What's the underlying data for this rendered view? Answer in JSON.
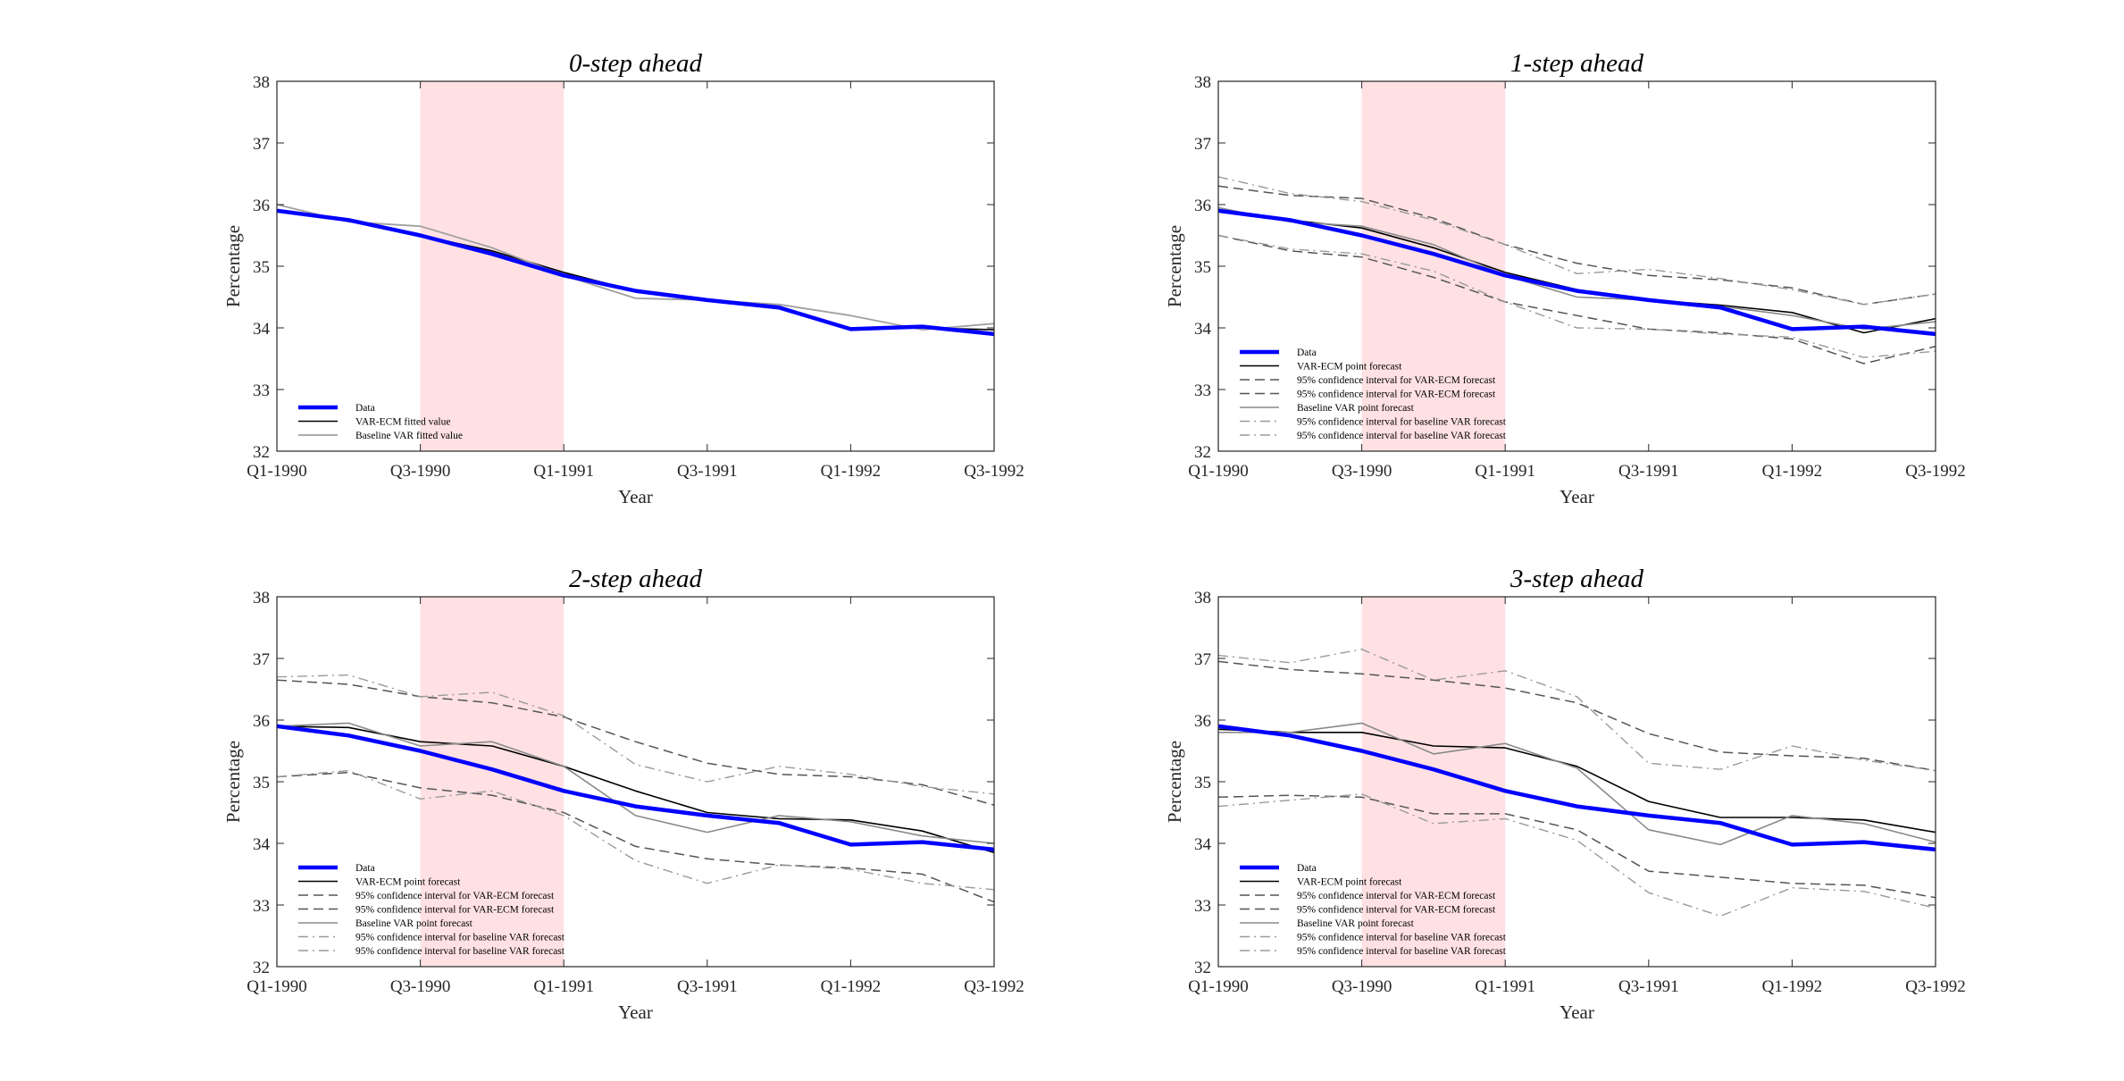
{
  "chart_data": [
    {
      "type": "line",
      "title": "0-step ahead",
      "xlabel": "Year",
      "ylabel": "Percentage",
      "ylim": [
        32,
        38
      ],
      "yticks": [
        32,
        33,
        34,
        35,
        36,
        37,
        38
      ],
      "xtick_labels": [
        "Q1-1990",
        "Q3-1990",
        "Q1-1991",
        "Q3-1991",
        "Q1-1992",
        "Q3-1992"
      ],
      "x": [
        0,
        1,
        2,
        3,
        4,
        5,
        6,
        7,
        8,
        9,
        10
      ],
      "shaded_region": [
        2,
        4
      ],
      "shade_color": "#ffe1e3",
      "legend_position": "bottom-left",
      "series": [
        {
          "name": "Data",
          "color": "#0000ff",
          "dash": "solid",
          "width": 4.5,
          "values": [
            35.9,
            35.75,
            35.5,
            35.2,
            34.85,
            34.6,
            34.45,
            34.33,
            33.98,
            34.02,
            33.9
          ]
        },
        {
          "name": "VAR-ECM fitted value",
          "color": "#000000",
          "dash": "solid",
          "width": 1.6,
          "values": [
            35.9,
            35.75,
            35.5,
            35.25,
            34.9,
            34.6,
            34.45,
            34.35,
            33.98,
            34.0,
            33.97
          ]
        },
        {
          "name": "Baseline VAR fitted value",
          "color": "#a0a0a0",
          "dash": "solid",
          "width": 1.8,
          "values": [
            36.0,
            35.72,
            35.65,
            35.3,
            34.85,
            34.48,
            34.45,
            34.38,
            34.2,
            33.97,
            34.07
          ]
        }
      ]
    },
    {
      "type": "line",
      "title": "1-step ahead",
      "xlabel": "Year",
      "ylabel": "Percentage",
      "ylim": [
        32,
        38
      ],
      "yticks": [
        32,
        33,
        34,
        35,
        36,
        37,
        38
      ],
      "xtick_labels": [
        "Q1-1990",
        "Q3-1990",
        "Q1-1991",
        "Q3-1991",
        "Q1-1992",
        "Q3-1992"
      ],
      "x": [
        0,
        1,
        2,
        3,
        4,
        5,
        6,
        7,
        8,
        9,
        10
      ],
      "shaded_region": [
        2,
        4
      ],
      "shade_color": "#ffe1e3",
      "legend_position": "bottom-left",
      "series": [
        {
          "name": "Data",
          "color": "#0000ff",
          "dash": "solid",
          "width": 4.5,
          "values": [
            35.9,
            35.75,
            35.5,
            35.2,
            34.85,
            34.6,
            34.45,
            34.33,
            33.98,
            34.02,
            33.9
          ]
        },
        {
          "name": "VAR-ECM point forecast",
          "color": "#000000",
          "dash": "solid",
          "width": 1.6,
          "values": [
            35.9,
            35.75,
            35.62,
            35.3,
            34.9,
            34.62,
            34.45,
            34.37,
            34.25,
            33.92,
            34.15
          ]
        },
        {
          "name": "95% confidence interval for VAR-ECM forecast",
          "color": "#555555",
          "dash": "dashed",
          "width": 1.5,
          "values": [
            36.3,
            36.15,
            36.1,
            35.78,
            35.35,
            35.05,
            34.85,
            34.78,
            34.65,
            34.38,
            34.55
          ]
        },
        {
          "name": "95% confidence interval for VAR-ECM forecast",
          "color": "#555555",
          "dash": "dashed",
          "width": 1.5,
          "values": [
            35.5,
            35.25,
            35.15,
            34.82,
            34.42,
            34.2,
            33.98,
            33.92,
            33.82,
            33.42,
            33.7
          ]
        },
        {
          "name": "Baseline VAR point forecast",
          "color": "#8a8a8a",
          "dash": "solid",
          "width": 1.6,
          "values": [
            35.95,
            35.72,
            35.65,
            35.35,
            34.85,
            34.5,
            34.45,
            34.35,
            34.2,
            33.98,
            34.1
          ]
        },
        {
          "name": "95% confidence interval for baseline VAR forecast",
          "color": "#9a9a9a",
          "dash": "dashdot",
          "width": 1.4,
          "values": [
            36.45,
            36.18,
            36.05,
            35.75,
            35.35,
            34.88,
            34.95,
            34.8,
            34.62,
            34.38,
            34.55
          ]
        },
        {
          "name": "95% confidence interval for baseline VAR forecast",
          "color": "#9a9a9a",
          "dash": "dashdot",
          "width": 1.4,
          "values": [
            35.5,
            35.28,
            35.2,
            34.92,
            34.42,
            34.0,
            33.98,
            33.9,
            33.85,
            33.52,
            33.62
          ]
        }
      ]
    },
    {
      "type": "line",
      "title": "2-step ahead",
      "xlabel": "Year",
      "ylabel": "Percentage",
      "ylim": [
        32,
        38
      ],
      "yticks": [
        32,
        33,
        34,
        35,
        36,
        37,
        38
      ],
      "xtick_labels": [
        "Q1-1990",
        "Q3-1990",
        "Q1-1991",
        "Q3-1991",
        "Q1-1992",
        "Q3-1992"
      ],
      "x": [
        0,
        1,
        2,
        3,
        4,
        5,
        6,
        7,
        8,
        9,
        10
      ],
      "shaded_region": [
        2,
        4
      ],
      "shade_color": "#ffe1e3",
      "legend_position": "bottom-left",
      "series": [
        {
          "name": "Data",
          "color": "#0000ff",
          "dash": "solid",
          "width": 4.5,
          "values": [
            35.9,
            35.75,
            35.5,
            35.2,
            34.85,
            34.6,
            34.45,
            34.33,
            33.98,
            34.02,
            33.9
          ]
        },
        {
          "name": "VAR-ECM point forecast",
          "color": "#000000",
          "dash": "solid",
          "width": 1.6,
          "values": [
            35.9,
            35.88,
            35.65,
            35.58,
            35.25,
            34.85,
            34.5,
            34.4,
            34.38,
            34.2,
            33.85
          ]
        },
        {
          "name": "95% confidence interval for VAR-ECM forecast",
          "color": "#555555",
          "dash": "dashed",
          "width": 1.5,
          "values": [
            36.65,
            36.58,
            36.38,
            36.28,
            36.05,
            35.65,
            35.3,
            35.12,
            35.08,
            34.95,
            34.62
          ]
        },
        {
          "name": "95% confidence interval for VAR-ECM forecast",
          "color": "#555555",
          "dash": "dashed",
          "width": 1.5,
          "values": [
            35.08,
            35.15,
            34.9,
            34.78,
            34.5,
            33.95,
            33.75,
            33.65,
            33.6,
            33.5,
            33.05
          ]
        },
        {
          "name": "Baseline VAR point forecast",
          "color": "#8a8a8a",
          "dash": "solid",
          "width": 1.6,
          "values": [
            35.9,
            35.95,
            35.58,
            35.65,
            35.25,
            34.45,
            34.18,
            34.45,
            34.35,
            34.12,
            34.0
          ]
        },
        {
          "name": "95% confidence interval for baseline VAR forecast",
          "color": "#9a9a9a",
          "dash": "dashdot",
          "width": 1.4,
          "values": [
            36.7,
            36.73,
            36.38,
            36.45,
            36.07,
            35.28,
            35.0,
            35.25,
            35.12,
            34.92,
            34.8
          ]
        },
        {
          "name": "95% confidence interval for baseline VAR forecast",
          "color": "#9a9a9a",
          "dash": "dashdot",
          "width": 1.4,
          "values": [
            35.08,
            35.18,
            34.72,
            34.85,
            34.45,
            33.72,
            33.35,
            33.65,
            33.58,
            33.35,
            33.25
          ]
        }
      ]
    },
    {
      "type": "line",
      "title": "3-step ahead",
      "xlabel": "Year",
      "ylabel": "Percentage",
      "ylim": [
        32,
        38
      ],
      "yticks": [
        32,
        33,
        34,
        35,
        36,
        37,
        38
      ],
      "xtick_labels": [
        "Q1-1990",
        "Q3-1990",
        "Q1-1991",
        "Q3-1991",
        "Q1-1992",
        "Q3-1992"
      ],
      "x": [
        0,
        1,
        2,
        3,
        4,
        5,
        6,
        7,
        8,
        9,
        10
      ],
      "shaded_region": [
        2,
        4
      ],
      "shade_color": "#ffe1e3",
      "legend_position": "bottom-left",
      "series": [
        {
          "name": "Data",
          "color": "#0000ff",
          "dash": "solid",
          "width": 4.5,
          "values": [
            35.9,
            35.75,
            35.5,
            35.2,
            34.85,
            34.6,
            34.45,
            34.33,
            33.98,
            34.02,
            33.9
          ]
        },
        {
          "name": "VAR-ECM point forecast",
          "color": "#000000",
          "dash": "solid",
          "width": 1.6,
          "values": [
            35.85,
            35.8,
            35.8,
            35.58,
            35.55,
            35.25,
            34.68,
            34.42,
            34.42,
            34.38,
            34.18
          ]
        },
        {
          "name": "95% confidence interval for VAR-ECM forecast",
          "color": "#555555",
          "dash": "dashed",
          "width": 1.5,
          "values": [
            36.95,
            36.82,
            36.75,
            36.65,
            36.52,
            36.28,
            35.78,
            35.48,
            35.42,
            35.38,
            35.18
          ]
        },
        {
          "name": "95% confidence interval for VAR-ECM forecast",
          "color": "#555555",
          "dash": "dashed",
          "width": 1.5,
          "values": [
            34.75,
            34.78,
            34.75,
            34.48,
            34.48,
            34.22,
            33.55,
            33.45,
            33.35,
            33.32,
            33.12
          ]
        },
        {
          "name": "Baseline VAR point forecast",
          "color": "#8a8a8a",
          "dash": "solid",
          "width": 1.6,
          "values": [
            35.8,
            35.8,
            35.95,
            35.45,
            35.62,
            35.22,
            34.22,
            33.98,
            34.45,
            34.32,
            34.02
          ]
        },
        {
          "name": "95% confidence interval for baseline VAR forecast",
          "color": "#9a9a9a",
          "dash": "dashdot",
          "width": 1.4,
          "values": [
            37.05,
            36.93,
            37.15,
            36.65,
            36.8,
            36.38,
            35.3,
            35.2,
            35.58,
            35.35,
            35.18
          ]
        },
        {
          "name": "95% confidence interval for baseline VAR forecast",
          "color": "#9a9a9a",
          "dash": "dashdot",
          "width": 1.4,
          "values": [
            34.6,
            34.7,
            34.8,
            34.32,
            34.4,
            34.05,
            33.2,
            32.82,
            33.28,
            33.22,
            32.95
          ]
        }
      ]
    }
  ]
}
